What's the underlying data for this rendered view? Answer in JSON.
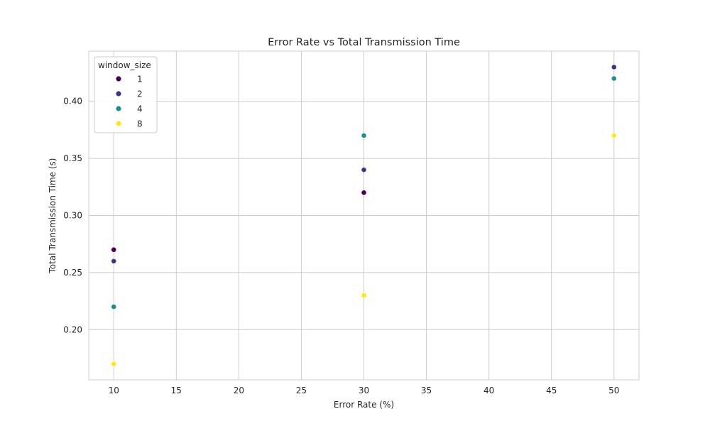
{
  "chart_data": {
    "type": "scatter",
    "title": "Error Rate vs Total Transmission Time",
    "xlabel": "Error Rate (%)",
    "ylabel": "Total Transmission Time (s)",
    "xlim": [
      8,
      52
    ],
    "ylim": [
      0.156,
      0.444
    ],
    "xticks": [
      10,
      15,
      20,
      25,
      30,
      35,
      40,
      45,
      50
    ],
    "yticks": [
      0.2,
      0.25,
      0.3,
      0.35,
      0.4
    ],
    "ytick_labels": [
      "0.20",
      "0.25",
      "0.30",
      "0.35",
      "0.40"
    ],
    "grid": true,
    "legend": {
      "title": "window_size",
      "placement": "top-left"
    },
    "series": [
      {
        "name": "1",
        "color": "#440154",
        "points": [
          {
            "x": 10,
            "y": 0.27
          },
          {
            "x": 30,
            "y": 0.32
          }
        ]
      },
      {
        "name": "2",
        "color": "#46337e",
        "points": [
          {
            "x": 10,
            "y": 0.26
          },
          {
            "x": 30,
            "y": 0.34
          },
          {
            "x": 50,
            "y": 0.43
          }
        ]
      },
      {
        "name": "4",
        "color": "#21908d",
        "points": [
          {
            "x": 10,
            "y": 0.22
          },
          {
            "x": 30,
            "y": 0.37
          },
          {
            "x": 50,
            "y": 0.42
          }
        ]
      },
      {
        "name": "8",
        "color": "#fde725",
        "points": [
          {
            "x": 10,
            "y": 0.17
          },
          {
            "x": 30,
            "y": 0.23
          },
          {
            "x": 50,
            "y": 0.37
          }
        ]
      }
    ]
  }
}
